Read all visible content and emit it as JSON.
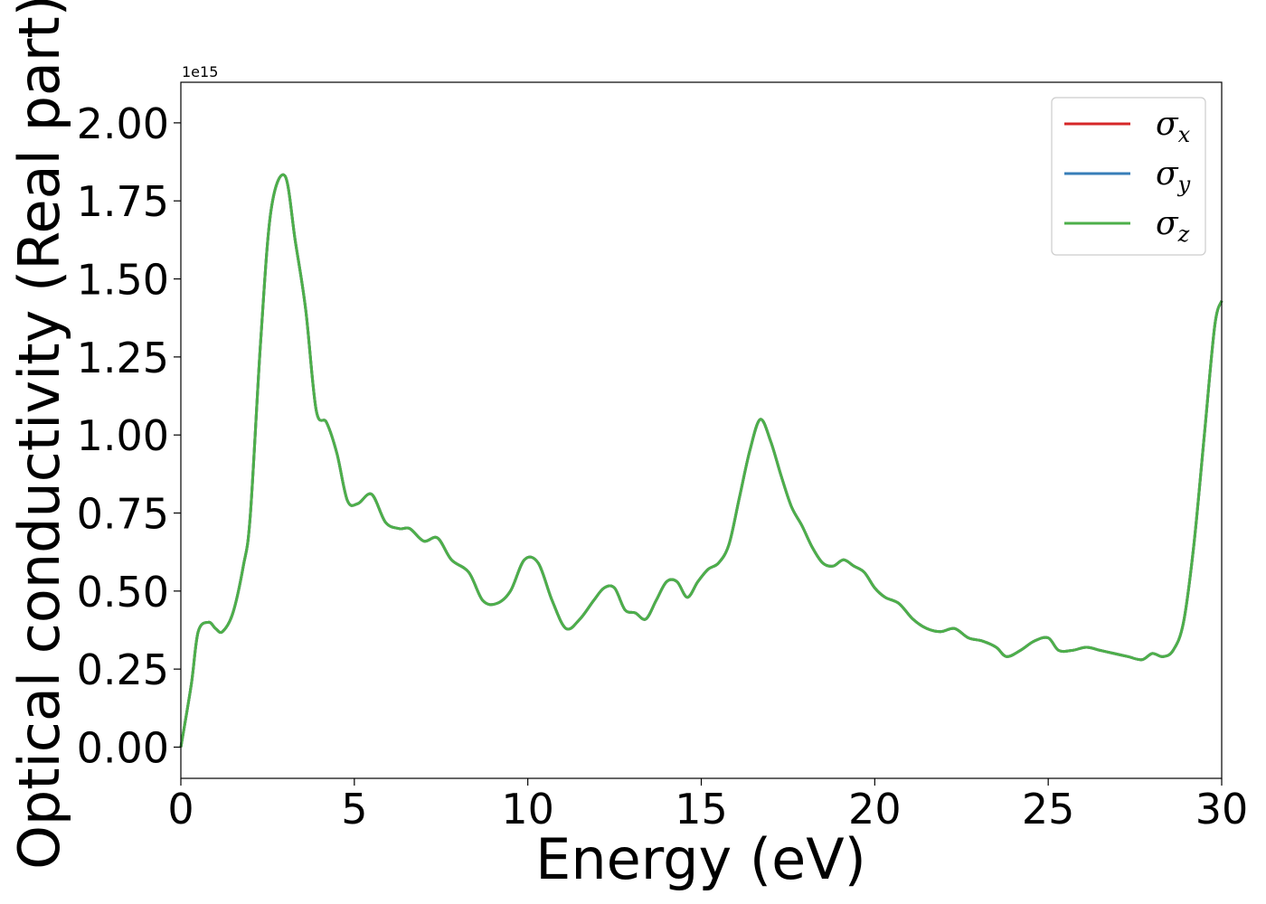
{
  "chart_data": {
    "type": "line",
    "title": "",
    "xlabel": "Energy (eV)",
    "ylabel": "Optical conductivity (Real part)",
    "y_offset_text": "1e15",
    "xlim": [
      0,
      30
    ],
    "ylim": [
      -0.1,
      2.13
    ],
    "y_scale": 1000000000000000.0,
    "xticks": [
      0,
      5,
      10,
      15,
      20,
      25,
      30
    ],
    "xtick_labels": [
      "0",
      "5",
      "10",
      "15",
      "20",
      "25",
      "30"
    ],
    "yticks": [
      0.0,
      0.25,
      0.5,
      0.75,
      1.0,
      1.25,
      1.5,
      1.75,
      2.0
    ],
    "ytick_labels": [
      "0.00",
      "0.25",
      "0.50",
      "0.75",
      "1.00",
      "1.25",
      "1.50",
      "1.75",
      "2.00"
    ],
    "grid": false,
    "legend_position": "top-right",
    "x": [
      0,
      0.3,
      0.5,
      0.8,
      1.0,
      1.2,
      1.5,
      1.8,
      2.0,
      2.3,
      2.6,
      3.0,
      3.3,
      3.6,
      3.9,
      4.2,
      4.5,
      4.8,
      5.1,
      5.5,
      5.9,
      6.3,
      6.6,
      7.0,
      7.4,
      7.8,
      8.3,
      8.7,
      9.1,
      9.5,
      9.9,
      10.3,
      10.7,
      11.1,
      11.5,
      11.9,
      12.2,
      12.5,
      12.8,
      13.1,
      13.4,
      13.7,
      14.0,
      14.3,
      14.6,
      14.9,
      15.2,
      15.5,
      15.8,
      16.1,
      16.4,
      16.7,
      17.0,
      17.3,
      17.6,
      17.9,
      18.2,
      18.5,
      18.8,
      19.1,
      19.4,
      19.7,
      20.0,
      20.3,
      20.7,
      21.1,
      21.5,
      21.9,
      22.3,
      22.7,
      23.1,
      23.5,
      23.8,
      24.2,
      24.6,
      25.0,
      25.3,
      25.7,
      26.1,
      26.5,
      26.9,
      27.3,
      27.7,
      28.0,
      28.3,
      28.6,
      28.9,
      29.2,
      29.5,
      29.8,
      30.0
    ],
    "series": [
      {
        "name": "σ_x",
        "color": "#d62728",
        "values": [
          0.0,
          0.2,
          0.37,
          0.4,
          0.38,
          0.37,
          0.43,
          0.58,
          0.74,
          1.3,
          1.72,
          1.83,
          1.62,
          1.4,
          1.08,
          1.04,
          0.94,
          0.79,
          0.78,
          0.81,
          0.72,
          0.7,
          0.7,
          0.66,
          0.67,
          0.6,
          0.56,
          0.47,
          0.46,
          0.5,
          0.6,
          0.59,
          0.47,
          0.38,
          0.41,
          0.47,
          0.51,
          0.51,
          0.44,
          0.43,
          0.41,
          0.47,
          0.53,
          0.53,
          0.48,
          0.53,
          0.57,
          0.59,
          0.65,
          0.8,
          0.95,
          1.05,
          0.98,
          0.87,
          0.77,
          0.71,
          0.64,
          0.59,
          0.58,
          0.6,
          0.58,
          0.56,
          0.51,
          0.48,
          0.46,
          0.41,
          0.38,
          0.37,
          0.38,
          0.35,
          0.34,
          0.32,
          0.29,
          0.31,
          0.34,
          0.35,
          0.31,
          0.31,
          0.32,
          0.31,
          0.3,
          0.29,
          0.28,
          0.3,
          0.29,
          0.31,
          0.4,
          0.65,
          1.0,
          1.35,
          1.43
        ]
      },
      {
        "name": "σ_y",
        "color": "#377eb8",
        "values": [
          0.0,
          0.2,
          0.37,
          0.4,
          0.38,
          0.37,
          0.43,
          0.58,
          0.74,
          1.3,
          1.72,
          1.83,
          1.62,
          1.4,
          1.08,
          1.04,
          0.94,
          0.79,
          0.78,
          0.81,
          0.72,
          0.7,
          0.7,
          0.66,
          0.67,
          0.6,
          0.56,
          0.47,
          0.46,
          0.5,
          0.6,
          0.59,
          0.47,
          0.38,
          0.41,
          0.47,
          0.51,
          0.51,
          0.44,
          0.43,
          0.41,
          0.47,
          0.53,
          0.53,
          0.48,
          0.53,
          0.57,
          0.59,
          0.65,
          0.8,
          0.95,
          1.05,
          0.98,
          0.87,
          0.77,
          0.71,
          0.64,
          0.59,
          0.58,
          0.6,
          0.58,
          0.56,
          0.51,
          0.48,
          0.46,
          0.41,
          0.38,
          0.37,
          0.38,
          0.35,
          0.34,
          0.32,
          0.29,
          0.31,
          0.34,
          0.35,
          0.31,
          0.31,
          0.32,
          0.31,
          0.3,
          0.29,
          0.28,
          0.3,
          0.29,
          0.31,
          0.4,
          0.65,
          1.0,
          1.35,
          1.43
        ]
      },
      {
        "name": "σ_z",
        "color": "#4daf4a",
        "values": [
          0.0,
          0.2,
          0.37,
          0.4,
          0.38,
          0.37,
          0.43,
          0.58,
          0.74,
          1.3,
          1.72,
          1.83,
          1.62,
          1.4,
          1.08,
          1.04,
          0.94,
          0.79,
          0.78,
          0.81,
          0.72,
          0.7,
          0.7,
          0.66,
          0.67,
          0.6,
          0.56,
          0.47,
          0.46,
          0.5,
          0.6,
          0.59,
          0.47,
          0.38,
          0.41,
          0.47,
          0.51,
          0.51,
          0.44,
          0.43,
          0.41,
          0.47,
          0.53,
          0.53,
          0.48,
          0.53,
          0.57,
          0.59,
          0.65,
          0.8,
          0.95,
          1.05,
          0.98,
          0.87,
          0.77,
          0.71,
          0.64,
          0.59,
          0.58,
          0.6,
          0.58,
          0.56,
          0.51,
          0.48,
          0.46,
          0.41,
          0.38,
          0.37,
          0.38,
          0.35,
          0.34,
          0.32,
          0.29,
          0.31,
          0.34,
          0.35,
          0.31,
          0.31,
          0.32,
          0.31,
          0.3,
          0.29,
          0.28,
          0.3,
          0.29,
          0.31,
          0.4,
          0.65,
          1.0,
          1.35,
          1.43
        ]
      }
    ],
    "legend": [
      {
        "symbol": "σ",
        "subscript": "x",
        "color": "#d62728"
      },
      {
        "symbol": "σ",
        "subscript": "y",
        "color": "#377eb8"
      },
      {
        "symbol": "σ",
        "subscript": "z",
        "color": "#4daf4a"
      }
    ]
  }
}
